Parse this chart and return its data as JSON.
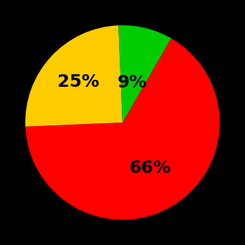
{
  "slices": [
    66,
    25,
    9
  ],
  "colors": [
    "#ff0000",
    "#ffcc00",
    "#00cc00"
  ],
  "labels": [
    "66%",
    "25%",
    "9%"
  ],
  "background_color": "#000000",
  "label_fontsize": 18,
  "label_color": "#000000",
  "startangle": 60,
  "label_radii": [
    0.55,
    0.62,
    0.42
  ],
  "figsize": [
    3.5,
    3.5
  ],
  "dpi": 100
}
